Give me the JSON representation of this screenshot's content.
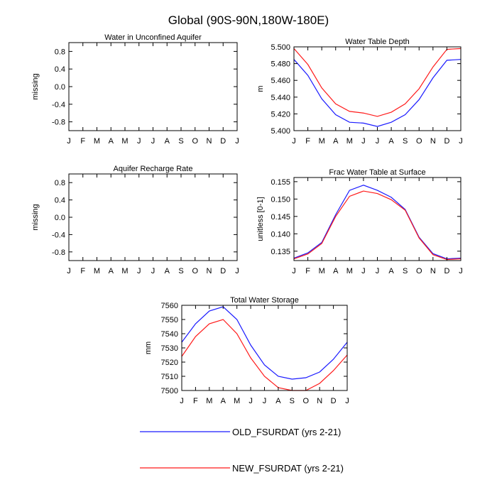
{
  "figure": {
    "title": "Global (90S-90N,180W-180E)"
  },
  "months": [
    "J",
    "F",
    "M",
    "A",
    "M",
    "J",
    "J",
    "A",
    "S",
    "O",
    "N",
    "D",
    "J"
  ],
  "legend": [
    {
      "name": "OLD_FSURDAT (yrs 2-21)",
      "color": "#1a1aff"
    },
    {
      "name": "NEW_FSURDAT (yrs 2-21)",
      "color": "#ff1a1a"
    }
  ],
  "chart_data": [
    {
      "id": "p1",
      "type": "line",
      "title": "Water in Unconfined Aquifer",
      "ylabel": "missing",
      "ylim": [
        -1.0,
        1.0
      ],
      "yticks": [
        -0.8,
        -0.4,
        0.0,
        0.4,
        0.8
      ],
      "ytick_labels": [
        "-0.8",
        "-0.4",
        "0.0",
        "0.4",
        "0.8"
      ],
      "series": []
    },
    {
      "id": "p2",
      "type": "line",
      "title": "Water Table Depth",
      "ylabel": "m",
      "ylim": [
        5.4,
        5.5
      ],
      "yticks": [
        5.4,
        5.42,
        5.44,
        5.46,
        5.48,
        5.5
      ],
      "ytick_labels": [
        "5.400",
        "5.420",
        "5.440",
        "5.460",
        "5.480",
        "5.500"
      ],
      "series": [
        {
          "name": "OLD_FSURDAT (yrs 2-21)",
          "color": "#1a1aff",
          "values": [
            5.485,
            5.466,
            5.438,
            5.419,
            5.41,
            5.409,
            5.405,
            5.41,
            5.419,
            5.437,
            5.463,
            5.484,
            5.485
          ]
        },
        {
          "name": "NEW_FSURDAT (yrs 2-21)",
          "color": "#ff1a1a",
          "values": [
            5.498,
            5.479,
            5.451,
            5.432,
            5.423,
            5.421,
            5.417,
            5.422,
            5.432,
            5.45,
            5.476,
            5.497,
            5.498
          ]
        }
      ]
    },
    {
      "id": "p3",
      "type": "line",
      "title": "Aquifer Recharge Rate",
      "ylabel": "missing",
      "ylim": [
        -1.0,
        1.0
      ],
      "yticks": [
        -0.8,
        -0.4,
        0.0,
        0.4,
        0.8
      ],
      "ytick_labels": [
        "-0.8",
        "-0.4",
        "0.0",
        "0.4",
        "0.8"
      ],
      "series": []
    },
    {
      "id": "p4",
      "type": "line",
      "title": "Frac Water Table at Surface",
      "ylabel": "unitless [0-1]",
      "ylim": [
        0.1323,
        0.1562
      ],
      "yticks": [
        0.135,
        0.14,
        0.145,
        0.15,
        0.155
      ],
      "ytick_labels": [
        "0.135",
        "0.140",
        "0.145",
        "0.150",
        "0.155"
      ],
      "series": [
        {
          "name": "OLD_FSURDAT (yrs 2-21)",
          "color": "#1a1aff",
          "values": [
            0.133,
            0.1345,
            0.1375,
            0.1455,
            0.1525,
            0.154,
            0.1525,
            0.1505,
            0.147,
            0.139,
            0.1343,
            0.1328,
            0.133
          ]
        },
        {
          "name": "NEW_FSURDAT (yrs 2-21)",
          "color": "#ff1a1a",
          "values": [
            0.1328,
            0.1342,
            0.1372,
            0.145,
            0.1508,
            0.1523,
            0.1516,
            0.1498,
            0.1468,
            0.1388,
            0.134,
            0.1326,
            0.1328
          ]
        }
      ]
    },
    {
      "id": "p5",
      "type": "line",
      "title": "Total Water Storage",
      "ylabel": "mm",
      "ylim": [
        7500,
        7560
      ],
      "yticks": [
        7500,
        7510,
        7520,
        7530,
        7540,
        7550,
        7560
      ],
      "ytick_labels": [
        "7500",
        "7510",
        "7520",
        "7530",
        "7540",
        "7550",
        "7560"
      ],
      "series": [
        {
          "name": "OLD_FSURDAT (yrs 2-21)",
          "color": "#1a1aff",
          "values": [
            7534,
            7547,
            7556,
            7559,
            7550,
            7532,
            7518,
            7510,
            7508,
            7509,
            7513,
            7522,
            7534
          ]
        },
        {
          "name": "NEW_FSURDAT (yrs 2-21)",
          "color": "#ff1a1a",
          "values": [
            7524,
            7538,
            7547,
            7550,
            7540,
            7523,
            7510,
            7502,
            7500,
            7500,
            7505,
            7514,
            7525
          ]
        }
      ]
    }
  ]
}
